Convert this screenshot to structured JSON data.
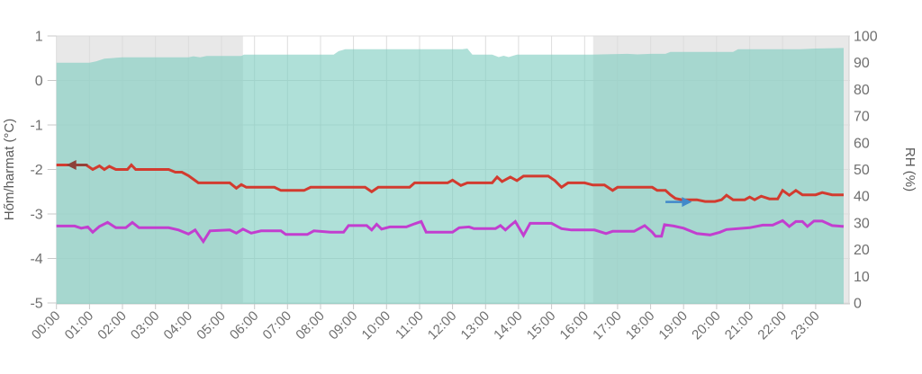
{
  "chart_data": {
    "type": "area",
    "title": "",
    "left_axis": {
      "label": "Hőm/harmat (°C)",
      "min": -5,
      "max": 1,
      "ticks": [
        1,
        0,
        -1,
        -2,
        -3,
        -4,
        -5
      ]
    },
    "right_axis": {
      "label": "RH (%)",
      "min": 0,
      "max": 100,
      "ticks": [
        100,
        90,
        80,
        70,
        60,
        50,
        40,
        30,
        20,
        10,
        0
      ]
    },
    "x_axis": {
      "tick_labels": [
        "00:00",
        "01:00",
        "02:00",
        "03:00",
        "04:00",
        "05:00",
        "06:00",
        "07:00",
        "08:00",
        "09:00",
        "10:00",
        "11:00",
        "12:00",
        "13:00",
        "14:00",
        "15:00",
        "16:00",
        "17:00",
        "18:00",
        "19:00",
        "20:00",
        "21:00",
        "22:00",
        "23:00"
      ],
      "hours_start": 0,
      "hours_end": 24.04,
      "grid": true
    },
    "night_bands": [
      {
        "start_hour": 0,
        "end_hour": 5.65
      },
      {
        "start_hour": 16.26,
        "end_hour": 24.04
      }
    ],
    "series": [
      {
        "name": "rh-area",
        "type": "area",
        "axis": "right",
        "color": "#7ecdc0",
        "fill_opacity": 0.62,
        "points": [
          [
            0,
            90
          ],
          [
            1.0,
            90
          ],
          [
            1.2,
            90.5
          ],
          [
            1.45,
            91.5
          ],
          [
            2.0,
            92
          ],
          [
            4.0,
            92
          ],
          [
            4.15,
            92.4
          ],
          [
            4.35,
            92
          ],
          [
            4.55,
            92.5
          ],
          [
            5.6,
            92.5
          ],
          [
            5.68,
            93
          ],
          [
            8.4,
            93
          ],
          [
            8.55,
            94.3
          ],
          [
            8.75,
            95
          ],
          [
            12.3,
            95
          ],
          [
            12.45,
            95.3
          ],
          [
            12.6,
            93
          ],
          [
            13.2,
            93
          ],
          [
            13.4,
            92.1
          ],
          [
            13.55,
            92.6
          ],
          [
            13.7,
            92.1
          ],
          [
            13.95,
            93
          ],
          [
            16.2,
            93
          ],
          [
            17.3,
            93.3
          ],
          [
            17.6,
            93.1
          ],
          [
            18.0,
            93.3
          ],
          [
            18.45,
            93.3
          ],
          [
            18.6,
            94
          ],
          [
            20.5,
            94
          ],
          [
            20.65,
            95
          ],
          [
            22.5,
            95
          ],
          [
            23.0,
            95.3
          ],
          [
            23.85,
            95.5
          ]
        ]
      },
      {
        "name": "temperature-line",
        "type": "line",
        "axis": "left",
        "color": "#d23b2f",
        "width": 3,
        "points": [
          [
            0,
            -1.9
          ],
          [
            0.9,
            -1.9
          ],
          [
            1.1,
            -2.0
          ],
          [
            1.3,
            -1.92
          ],
          [
            1.45,
            -2.0
          ],
          [
            1.6,
            -1.93
          ],
          [
            1.8,
            -2.0
          ],
          [
            2.15,
            -2.0
          ],
          [
            2.27,
            -1.9
          ],
          [
            2.4,
            -2.0
          ],
          [
            3.4,
            -2.0
          ],
          [
            3.6,
            -2.06
          ],
          [
            3.8,
            -2.06
          ],
          [
            4.0,
            -2.14
          ],
          [
            4.15,
            -2.22
          ],
          [
            4.3,
            -2.3
          ],
          [
            5.25,
            -2.3
          ],
          [
            5.45,
            -2.42
          ],
          [
            5.6,
            -2.34
          ],
          [
            5.75,
            -2.4
          ],
          [
            6.6,
            -2.4
          ],
          [
            6.8,
            -2.47
          ],
          [
            7.5,
            -2.47
          ],
          [
            7.7,
            -2.4
          ],
          [
            9.35,
            -2.4
          ],
          [
            9.55,
            -2.5
          ],
          [
            9.75,
            -2.4
          ],
          [
            10.7,
            -2.4
          ],
          [
            10.85,
            -2.3
          ],
          [
            11.85,
            -2.3
          ],
          [
            12.0,
            -2.24
          ],
          [
            12.25,
            -2.36
          ],
          [
            12.45,
            -2.3
          ],
          [
            13.2,
            -2.3
          ],
          [
            13.35,
            -2.17
          ],
          [
            13.5,
            -2.27
          ],
          [
            13.75,
            -2.17
          ],
          [
            13.95,
            -2.25
          ],
          [
            14.15,
            -2.15
          ],
          [
            14.9,
            -2.15
          ],
          [
            15.1,
            -2.25
          ],
          [
            15.3,
            -2.4
          ],
          [
            15.5,
            -2.3
          ],
          [
            16.0,
            -2.3
          ],
          [
            16.25,
            -2.35
          ],
          [
            16.6,
            -2.35
          ],
          [
            16.85,
            -2.47
          ],
          [
            17.0,
            -2.4
          ],
          [
            18.05,
            -2.4
          ],
          [
            18.2,
            -2.47
          ],
          [
            18.45,
            -2.47
          ],
          [
            18.6,
            -2.57
          ],
          [
            18.75,
            -2.65
          ],
          [
            18.95,
            -2.68
          ],
          [
            19.4,
            -2.68
          ],
          [
            19.65,
            -2.72
          ],
          [
            19.95,
            -2.72
          ],
          [
            20.15,
            -2.68
          ],
          [
            20.3,
            -2.58
          ],
          [
            20.5,
            -2.68
          ],
          [
            20.85,
            -2.68
          ],
          [
            21.0,
            -2.62
          ],
          [
            21.15,
            -2.68
          ],
          [
            21.35,
            -2.6
          ],
          [
            21.6,
            -2.66
          ],
          [
            21.85,
            -2.66
          ],
          [
            22.0,
            -2.47
          ],
          [
            22.2,
            -2.58
          ],
          [
            22.4,
            -2.47
          ],
          [
            22.6,
            -2.57
          ],
          [
            23.0,
            -2.57
          ],
          [
            23.2,
            -2.52
          ],
          [
            23.5,
            -2.57
          ],
          [
            23.85,
            -2.57
          ]
        ]
      },
      {
        "name": "dewpoint-line",
        "type": "line",
        "axis": "left",
        "color": "#c23ecf",
        "width": 3,
        "points": [
          [
            0,
            -3.27
          ],
          [
            0.55,
            -3.27
          ],
          [
            0.75,
            -3.32
          ],
          [
            0.95,
            -3.29
          ],
          [
            1.1,
            -3.41
          ],
          [
            1.3,
            -3.28
          ],
          [
            1.55,
            -3.19
          ],
          [
            1.8,
            -3.31
          ],
          [
            2.1,
            -3.31
          ],
          [
            2.3,
            -3.19
          ],
          [
            2.5,
            -3.31
          ],
          [
            3.4,
            -3.31
          ],
          [
            3.7,
            -3.36
          ],
          [
            4.0,
            -3.45
          ],
          [
            4.2,
            -3.36
          ],
          [
            4.45,
            -3.62
          ],
          [
            4.65,
            -3.38
          ],
          [
            5.25,
            -3.36
          ],
          [
            5.45,
            -3.43
          ],
          [
            5.65,
            -3.34
          ],
          [
            5.9,
            -3.43
          ],
          [
            6.2,
            -3.38
          ],
          [
            6.8,
            -3.38
          ],
          [
            6.95,
            -3.46
          ],
          [
            7.6,
            -3.46
          ],
          [
            7.8,
            -3.38
          ],
          [
            8.3,
            -3.41
          ],
          [
            8.7,
            -3.41
          ],
          [
            8.85,
            -3.26
          ],
          [
            9.4,
            -3.26
          ],
          [
            9.55,
            -3.36
          ],
          [
            9.7,
            -3.23
          ],
          [
            9.85,
            -3.34
          ],
          [
            10.1,
            -3.29
          ],
          [
            10.6,
            -3.29
          ],
          [
            10.85,
            -3.22
          ],
          [
            11.05,
            -3.17
          ],
          [
            11.2,
            -3.41
          ],
          [
            12.0,
            -3.41
          ],
          [
            12.2,
            -3.31
          ],
          [
            12.5,
            -3.29
          ],
          [
            12.65,
            -3.33
          ],
          [
            13.3,
            -3.33
          ],
          [
            13.45,
            -3.26
          ],
          [
            13.6,
            -3.36
          ],
          [
            13.75,
            -3.26
          ],
          [
            13.9,
            -3.17
          ],
          [
            14.15,
            -3.48
          ],
          [
            14.35,
            -3.21
          ],
          [
            15.0,
            -3.21
          ],
          [
            15.3,
            -3.33
          ],
          [
            15.6,
            -3.36
          ],
          [
            16.3,
            -3.36
          ],
          [
            16.65,
            -3.44
          ],
          [
            16.85,
            -3.39
          ],
          [
            17.5,
            -3.39
          ],
          [
            17.82,
            -3.26
          ],
          [
            18.05,
            -3.41
          ],
          [
            18.15,
            -3.5
          ],
          [
            18.33,
            -3.5
          ],
          [
            18.42,
            -3.24
          ],
          [
            18.7,
            -3.27
          ],
          [
            19.0,
            -3.32
          ],
          [
            19.4,
            -3.44
          ],
          [
            19.8,
            -3.47
          ],
          [
            20.1,
            -3.41
          ],
          [
            20.3,
            -3.35
          ],
          [
            21.0,
            -3.31
          ],
          [
            21.4,
            -3.25
          ],
          [
            21.7,
            -3.25
          ],
          [
            22.0,
            -3.15
          ],
          [
            22.2,
            -3.28
          ],
          [
            22.4,
            -3.17
          ],
          [
            22.6,
            -3.17
          ],
          [
            22.75,
            -3.28
          ],
          [
            22.95,
            -3.16
          ],
          [
            23.2,
            -3.16
          ],
          [
            23.5,
            -3.26
          ],
          [
            23.85,
            -3.28
          ]
        ]
      }
    ],
    "annotations": [
      {
        "name": "arrow-left",
        "direction": "left",
        "color": "#8d4038",
        "hour_tip": 0.3,
        "hour_tail": 0.95,
        "axis": "left",
        "value": -1.9
      },
      {
        "name": "arrow-right",
        "direction": "right",
        "color": "#4189ca",
        "hour_tip": 19.25,
        "hour_tail": 18.45,
        "axis": "left",
        "value": -2.73
      }
    ],
    "colors": {
      "background": "#ffffff",
      "night_band": "#e8e8e8",
      "grid": "#dcdcdc",
      "axis_line": "#c9c9c9",
      "tick_text": "#6f6f6f",
      "axis_title_text": "#5a5a5a"
    },
    "legend": {
      "visible": false
    }
  }
}
